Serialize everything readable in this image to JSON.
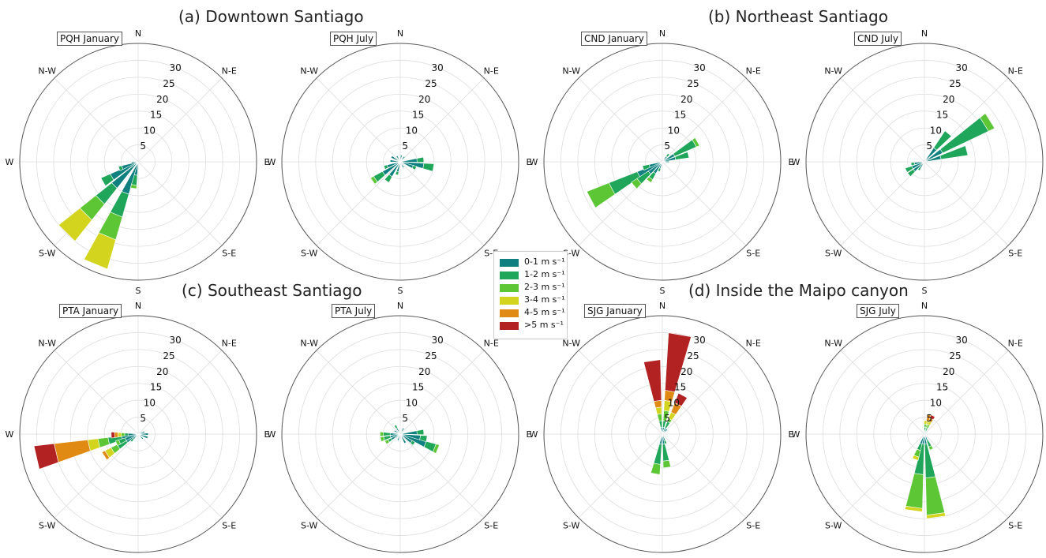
{
  "titles": {
    "a": "(a) Downtown Santiago",
    "b": "(b) Northeast Santiago",
    "c": "(c) Southeast Santiago",
    "d": "(d) Inside the Maipo canyon"
  },
  "legend": {
    "entries": [
      {
        "label": "0-1 m s⁻¹",
        "color": "#0f7f7f"
      },
      {
        "label": "1-2 m s⁻¹",
        "color": "#1fa65a"
      },
      {
        "label": "2-3 m s⁻¹",
        "color": "#5cc635"
      },
      {
        "label": "3-4 m s⁻¹",
        "color": "#d2d41d"
      },
      {
        "label": "4-5 m s⁻¹",
        "color": "#e08a14"
      },
      {
        "label": ">5 m s⁻¹",
        "color": "#b22222"
      }
    ]
  },
  "chart_data": [
    {
      "type": "windrose",
      "panel": "PQH January",
      "rmax": 35,
      "ticks": [
        5,
        10,
        15,
        20,
        25,
        30
      ],
      "directions": [
        "N",
        "N-E",
        "E",
        "S-E",
        "S",
        "S-W",
        "W",
        "N-W"
      ],
      "bins": [
        "0-1",
        "1-2",
        "2-3",
        "3-4",
        "4-5",
        ">5"
      ],
      "sectors": [
        {
          "dir": 202.5,
          "values": [
            10,
            7,
            7,
            9,
            0,
            0
          ]
        },
        {
          "dir": 225,
          "values": [
            10,
            6,
            6,
            8,
            0,
            0
          ]
        },
        {
          "dir": 240,
          "values": [
            9,
            3,
            0,
            0,
            0,
            0
          ]
        },
        {
          "dir": 250,
          "values": [
            5,
            1,
            0,
            0,
            0,
            0
          ]
        },
        {
          "dir": 190,
          "values": [
            4,
            3,
            1,
            0,
            0,
            0
          ]
        },
        {
          "dir": 265,
          "values": [
            2,
            0,
            0,
            0,
            0,
            0
          ]
        }
      ]
    },
    {
      "type": "windrose",
      "panel": "PQH July",
      "rmax": 35,
      "ticks": [
        5,
        10,
        15,
        20,
        25,
        30
      ],
      "directions": [
        "N",
        "N-E",
        "E",
        "S-E",
        "S",
        "S-W",
        "W",
        "N-W"
      ],
      "bins": [
        "0-1",
        "1-2",
        "2-3",
        "3-4",
        "4-5",
        ">5"
      ],
      "sectors": [
        {
          "dir": 100,
          "values": [
            7,
            3,
            0,
            0,
            0,
            0
          ]
        },
        {
          "dir": 85,
          "values": [
            5,
            2,
            0,
            0,
            0,
            0
          ]
        },
        {
          "dir": 112,
          "values": [
            4,
            1,
            0,
            0,
            0,
            0
          ]
        },
        {
          "dir": 235,
          "values": [
            6,
            3,
            1,
            0,
            0,
            0
          ]
        },
        {
          "dir": 215,
          "values": [
            5,
            2,
            0,
            0,
            0,
            0
          ]
        },
        {
          "dir": 250,
          "values": [
            4,
            1,
            0,
            0,
            0,
            0
          ]
        },
        {
          "dir": 195,
          "values": [
            3,
            1,
            0,
            0,
            0,
            0
          ]
        },
        {
          "dir": 275,
          "values": [
            3,
            0,
            0,
            0,
            0,
            0
          ]
        },
        {
          "dir": 300,
          "values": [
            3,
            0,
            0,
            0,
            0,
            0
          ]
        },
        {
          "dir": 330,
          "values": [
            2,
            0,
            0,
            0,
            0,
            0
          ]
        },
        {
          "dir": 10,
          "values": [
            2,
            0,
            0,
            0,
            0,
            0
          ]
        },
        {
          "dir": 40,
          "values": [
            2,
            0,
            0,
            0,
            0,
            0
          ]
        },
        {
          "dir": 150,
          "values": [
            2,
            0,
            0,
            0,
            0,
            0
          ]
        }
      ]
    },
    {
      "type": "windrose",
      "panel": "CND January",
      "rmax": 35,
      "ticks": [
        5,
        10,
        15,
        20,
        25,
        30
      ],
      "directions": [
        "N",
        "N-E",
        "E",
        "S-E",
        "S",
        "S-W",
        "W",
        "N-W"
      ],
      "bins": [
        "0-1",
        "1-2",
        "2-3",
        "3-4",
        "4-5",
        ">5"
      ],
      "sectors": [
        {
          "dir": 242,
          "values": [
            8,
            9,
            7,
            0,
            0,
            0
          ]
        },
        {
          "dir": 230,
          "values": [
            5,
            4,
            2,
            0,
            0,
            0
          ]
        },
        {
          "dir": 215,
          "values": [
            4,
            2,
            1,
            0,
            0,
            0
          ]
        },
        {
          "dir": 252,
          "values": [
            4,
            2,
            0,
            0,
            0,
            0
          ]
        },
        {
          "dir": 60,
          "values": [
            4,
            7,
            1,
            0,
            0,
            0
          ]
        },
        {
          "dir": 75,
          "values": [
            4,
            4,
            0,
            0,
            0,
            0
          ]
        },
        {
          "dir": 40,
          "values": [
            2,
            1,
            0,
            0,
            0,
            0
          ]
        },
        {
          "dir": 200,
          "values": [
            2,
            1,
            0,
            0,
            0,
            0
          ]
        },
        {
          "dir": 90,
          "values": [
            2,
            0,
            0,
            0,
            0,
            0
          ]
        }
      ]
    },
    {
      "type": "windrose",
      "panel": "CND July",
      "rmax": 35,
      "ticks": [
        5,
        10,
        15,
        20,
        25,
        30
      ],
      "directions": [
        "N",
        "N-E",
        "E",
        "S-E",
        "S",
        "S-W",
        "W",
        "N-W"
      ],
      "bins": [
        "0-1",
        "1-2",
        "2-3",
        "3-4",
        "4-5",
        ">5"
      ],
      "sectors": [
        {
          "dir": 58,
          "values": [
            6,
            15,
            2,
            0,
            0,
            0
          ]
        },
        {
          "dir": 75,
          "values": [
            5,
            8,
            0,
            0,
            0,
            0
          ]
        },
        {
          "dir": 40,
          "values": [
            5,
            6,
            0,
            0,
            0,
            0
          ]
        },
        {
          "dir": 245,
          "values": [
            4,
            2,
            0,
            0,
            0,
            0
          ]
        },
        {
          "dir": 230,
          "values": [
            4,
            2,
            0,
            0,
            0,
            0
          ]
        },
        {
          "dir": 260,
          "values": [
            3,
            1,
            0,
            0,
            0,
            0
          ]
        },
        {
          "dir": 215,
          "values": [
            2,
            1,
            0,
            0,
            0,
            0
          ]
        }
      ]
    },
    {
      "type": "windrose",
      "panel": "PTA January",
      "rmax": 35,
      "ticks": [
        5,
        10,
        15,
        20,
        25,
        30
      ],
      "directions": [
        "N",
        "N-E",
        "E",
        "S-E",
        "S",
        "S-W",
        "W",
        "N-W"
      ],
      "bins": [
        "0-1",
        "1-2",
        "2-3",
        "3-4",
        "4-5",
        ">5"
      ],
      "sectors": [
        {
          "dir": 257,
          "values": [
            5,
            4,
            3,
            3,
            10,
            6
          ]
        },
        {
          "dir": 237,
          "values": [
            4,
            3,
            2,
            2,
            1,
            0
          ]
        },
        {
          "dir": 247,
          "values": [
            4,
            2,
            1,
            0,
            0,
            0
          ]
        },
        {
          "dir": 268,
          "values": [
            3,
            1,
            1,
            1,
            1,
            1
          ]
        },
        {
          "dir": 90,
          "values": [
            3,
            0,
            0,
            0,
            0,
            0
          ]
        },
        {
          "dir": 110,
          "values": [
            3,
            0,
            0,
            0,
            0,
            0
          ]
        },
        {
          "dir": 70,
          "values": [
            2,
            0,
            0,
            0,
            0,
            0
          ]
        },
        {
          "dir": 135,
          "values": [
            2,
            0,
            0,
            0,
            0,
            0
          ]
        },
        {
          "dir": 225,
          "values": [
            2,
            1,
            0,
            0,
            0,
            0
          ]
        }
      ]
    },
    {
      "type": "windrose",
      "panel": "PTA July",
      "rmax": 35,
      "ticks": [
        5,
        10,
        15,
        20,
        25,
        30
      ],
      "directions": [
        "N",
        "N-E",
        "E",
        "S-E",
        "S",
        "S-W",
        "W",
        "N-W"
      ],
      "bins": [
        "0-1",
        "1-2",
        "2-3",
        "3-4",
        "4-5",
        ">5"
      ],
      "sectors": [
        {
          "dir": 112,
          "values": [
            8,
            3,
            1,
            0,
            0,
            0
          ]
        },
        {
          "dir": 100,
          "values": [
            6,
            2,
            0,
            0,
            0,
            0
          ]
        },
        {
          "dir": 85,
          "values": [
            5,
            2,
            0,
            0,
            0,
            0
          ]
        },
        {
          "dir": 125,
          "values": [
            4,
            1,
            0,
            0,
            0,
            0
          ]
        },
        {
          "dir": 255,
          "values": [
            3,
            2,
            1,
            0,
            0,
            0
          ]
        },
        {
          "dir": 240,
          "values": [
            3,
            1,
            1,
            0,
            0,
            0
          ]
        },
        {
          "dir": 270,
          "values": [
            3,
            2,
            1,
            0,
            0,
            0
          ]
        },
        {
          "dir": 150,
          "values": [
            3,
            0,
            0,
            0,
            0,
            0
          ]
        },
        {
          "dir": 200,
          "values": [
            2,
            0,
            0,
            0,
            0,
            0
          ]
        },
        {
          "dir": 300,
          "values": [
            2,
            0,
            0,
            0,
            0,
            0
          ]
        },
        {
          "dir": 330,
          "values": [
            2,
            1,
            0,
            0,
            0,
            0
          ]
        },
        {
          "dir": 30,
          "values": [
            2,
            0,
            0,
            0,
            0,
            0
          ]
        }
      ]
    },
    {
      "type": "windrose",
      "panel": "SJG January",
      "rmax": 35,
      "ticks": [
        5,
        10,
        15,
        20,
        25,
        30
      ],
      "directions": [
        "N",
        "N-E",
        "E",
        "S-E",
        "S",
        "S-W",
        "W",
        "N-W"
      ],
      "bins": [
        "0-1",
        "1-2",
        "2-3",
        "3-4",
        "4-5",
        ">5"
      ],
      "sectors": [
        {
          "dir": 10,
          "values": [
            2,
            2,
            3,
            3,
            3,
            17
          ]
        },
        {
          "dir": 352,
          "values": [
            2,
            2,
            2,
            2,
            2,
            12
          ]
        },
        {
          "dir": 28,
          "values": [
            2,
            2,
            1,
            2,
            3,
            3
          ]
        },
        {
          "dir": 190,
          "values": [
            3,
            6,
            3,
            0,
            0,
            0
          ]
        },
        {
          "dir": 172,
          "values": [
            3,
            5,
            2,
            0,
            0,
            0
          ]
        },
        {
          "dir": 45,
          "values": [
            2,
            0,
            0,
            0,
            0,
            0
          ]
        },
        {
          "dir": 160,
          "values": [
            2,
            1,
            0,
            0,
            0,
            0
          ]
        }
      ]
    },
    {
      "type": "windrose",
      "panel": "SJG July",
      "rmax": 35,
      "ticks": [
        5,
        10,
        15,
        20,
        25,
        30
      ],
      "directions": [
        "N",
        "N-E",
        "E",
        "S-E",
        "S",
        "S-W",
        "W",
        "N-W"
      ],
      "bins": [
        "0-1",
        "1-2",
        "2-3",
        "3-4",
        "4-5",
        ">5"
      ],
      "sectors": [
        {
          "dir": 172,
          "values": [
            3,
            10,
            11,
            1,
            0,
            0
          ]
        },
        {
          "dir": 188,
          "values": [
            3,
            9,
            10,
            1,
            0,
            0
          ]
        },
        {
          "dir": 200,
          "values": [
            3,
            2,
            2,
            1,
            0,
            0
          ]
        },
        {
          "dir": 155,
          "values": [
            2,
            2,
            1,
            0,
            0,
            0
          ]
        },
        {
          "dir": 15,
          "values": [
            1,
            1,
            1,
            1,
            2,
            0
          ]
        },
        {
          "dir": 25,
          "values": [
            1,
            1,
            1,
            1,
            1,
            1
          ]
        },
        {
          "dir": 5,
          "values": [
            1,
            1,
            1,
            1,
            0,
            0
          ]
        }
      ]
    }
  ]
}
